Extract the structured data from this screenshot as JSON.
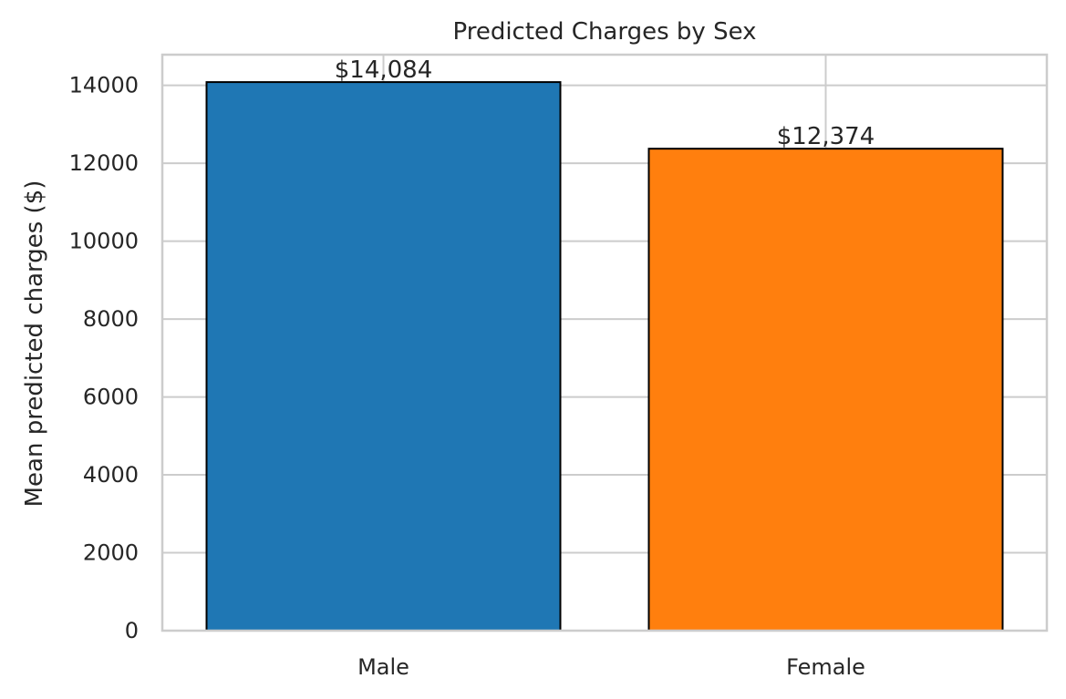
{
  "chart_data": {
    "type": "bar",
    "title": "Predicted Charges by Sex",
    "xlabel": "",
    "ylabel": "Mean predicted charges ($)",
    "categories": [
      "Male",
      "Female"
    ],
    "values": [
      14084,
      12374
    ],
    "data_labels": [
      "$14,084",
      "$12,374"
    ],
    "colors": [
      "#1f77b4",
      "#ff7f0e"
    ],
    "edge_color": "#000000",
    "ylim": [
      0,
      14788
    ],
    "yticks": [
      0,
      2000,
      4000,
      6000,
      8000,
      10000,
      12000,
      14000
    ],
    "ytick_labels": [
      "0",
      "2000",
      "4000",
      "6000",
      "8000",
      "10000",
      "12000",
      "14000"
    ],
    "grid": true,
    "grid_color": "#cccccc"
  }
}
